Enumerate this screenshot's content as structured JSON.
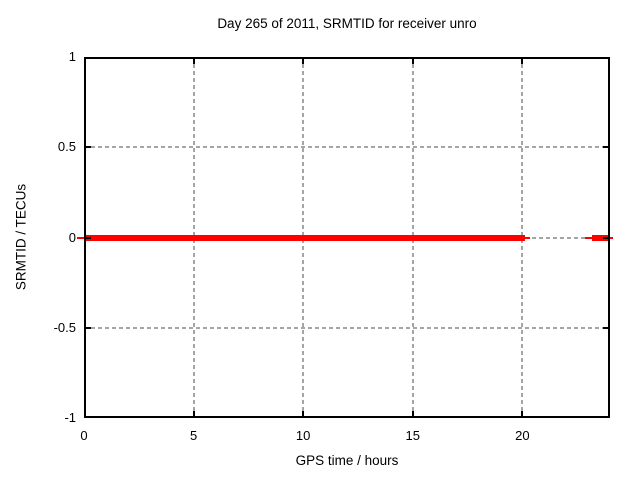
{
  "chart_data": {
    "type": "line",
    "title": "Day 265 of 2011, SRMTID for receiver unro",
    "xlabel": "GPS time / hours",
    "ylabel": "SRMTID / TECUs",
    "xlim": [
      0,
      24
    ],
    "ylim": [
      -1,
      1
    ],
    "xticks": [
      0,
      5,
      10,
      15,
      20
    ],
    "yticks": [
      1,
      0.5,
      0,
      -0.5,
      -1
    ],
    "grid": true,
    "grid_style": "dashed",
    "legend_position": "none",
    "series": [
      {
        "name": "SRMTID",
        "color": "#ff0000",
        "marker": "thick-square-band",
        "segments": [
          {
            "y": 0,
            "x_start": 0,
            "x_end": 20.1
          },
          {
            "y": 0,
            "x_start": 23.2,
            "x_end": 23.9
          }
        ]
      }
    ],
    "colors": {
      "grid": "#a5a5a5",
      "axis": "#000000",
      "text": "#000000",
      "background": "#ffffff"
    }
  }
}
